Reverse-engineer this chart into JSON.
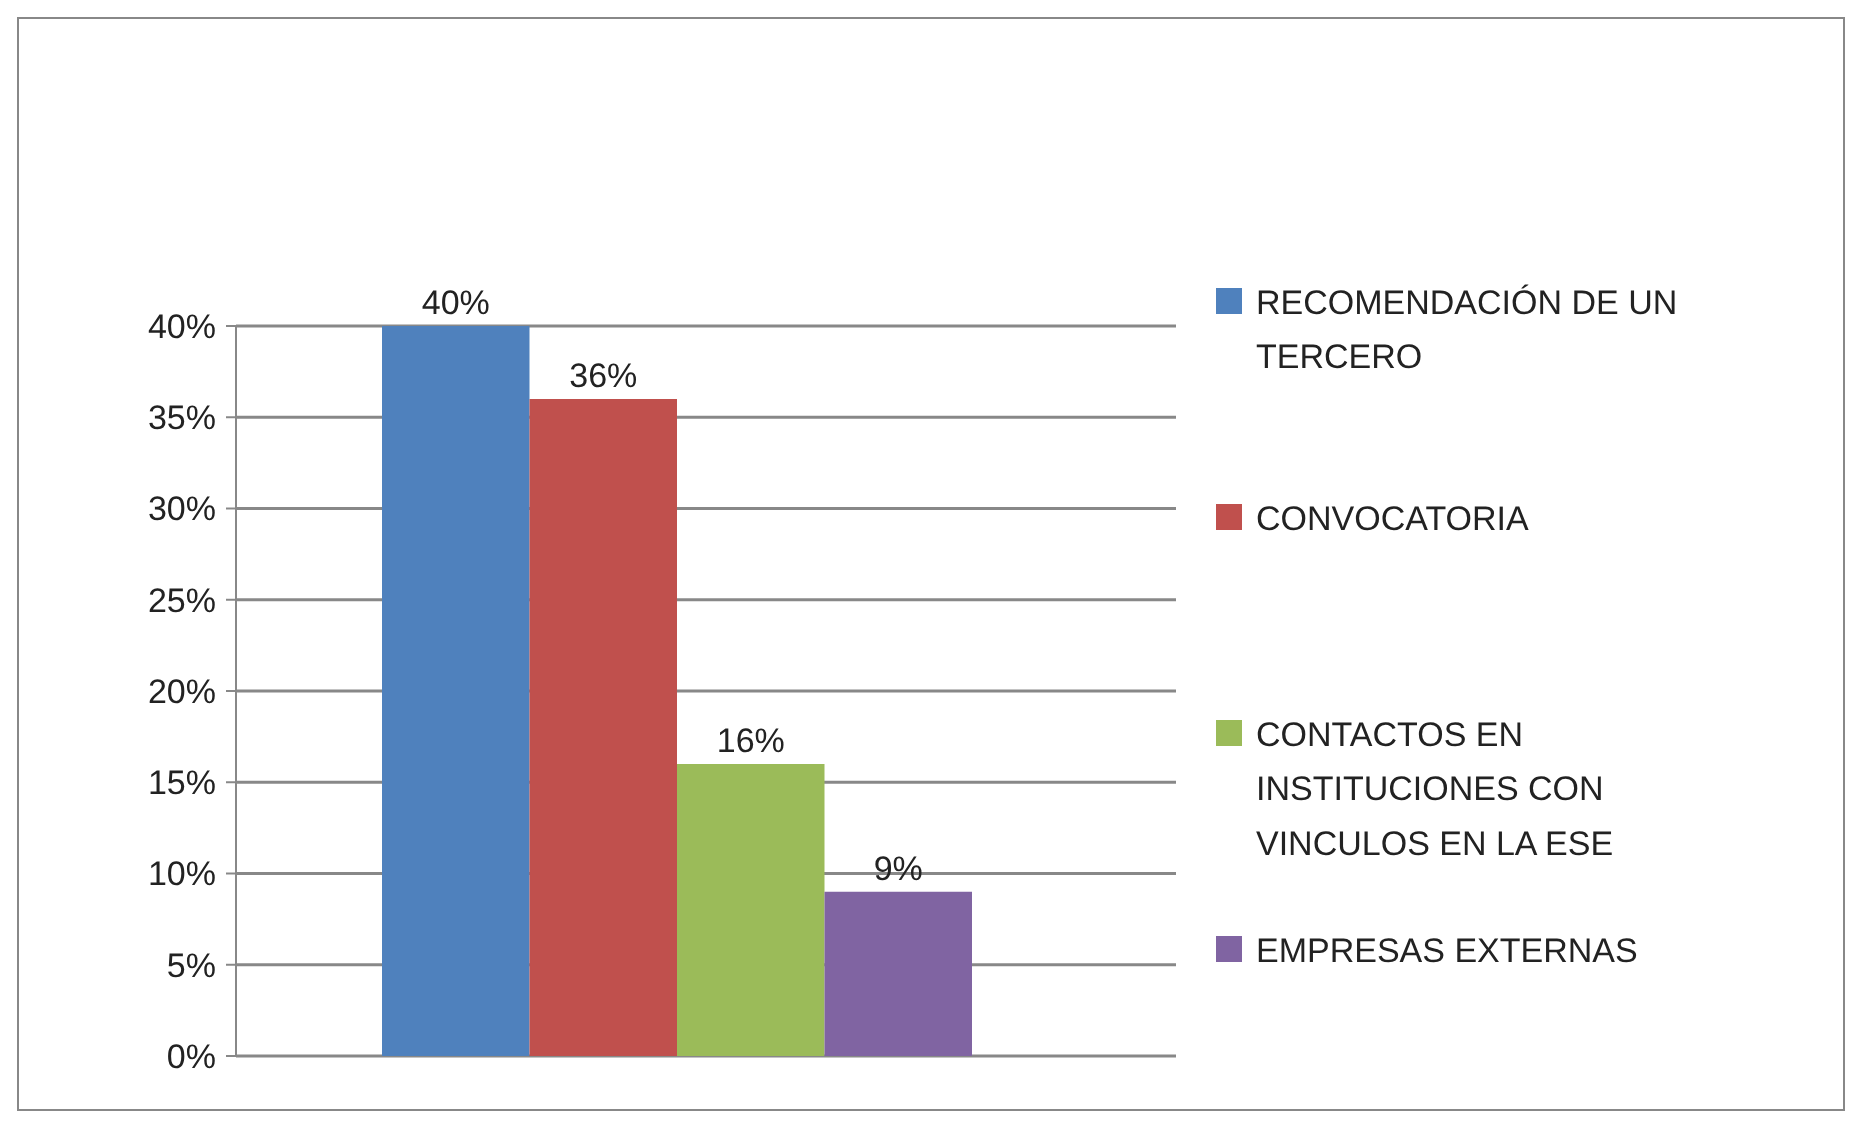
{
  "chart_data": {
    "type": "bar",
    "categories": [
      null
    ],
    "series": [
      {
        "name": "RECOMENDACIÓN DE UN TERCERO",
        "color": "#4f81bd",
        "values": [
          40
        ],
        "value_labels": [
          "40%"
        ]
      },
      {
        "name": "CONVOCATORIA",
        "color": "#c0504d",
        "values": [
          36
        ],
        "value_labels": [
          "36%"
        ]
      },
      {
        "name": "CONTACTOS EN INSTITUCIONES CON VINCULOS EN LA ESE",
        "color": "#9bbb59",
        "values": [
          16
        ],
        "value_labels": [
          "16%"
        ]
      },
      {
        "name": "EMPRESAS EXTERNAS",
        "color": "#8064a2",
        "values": [
          9
        ],
        "value_labels": [
          "9%"
        ]
      }
    ],
    "ylim": [
      0,
      40
    ],
    "yticks": [
      {
        "value": 0,
        "label": "0%"
      },
      {
        "value": 5,
        "label": "5%"
      },
      {
        "value": 10,
        "label": "10%"
      },
      {
        "value": 15,
        "label": "15%"
      },
      {
        "value": 20,
        "label": "20%"
      },
      {
        "value": 25,
        "label": "25%"
      },
      {
        "value": 30,
        "label": "30%"
      },
      {
        "value": 35,
        "label": "35%"
      },
      {
        "value": 40,
        "label": "40%"
      }
    ],
    "grid": "y",
    "legend": "right"
  }
}
